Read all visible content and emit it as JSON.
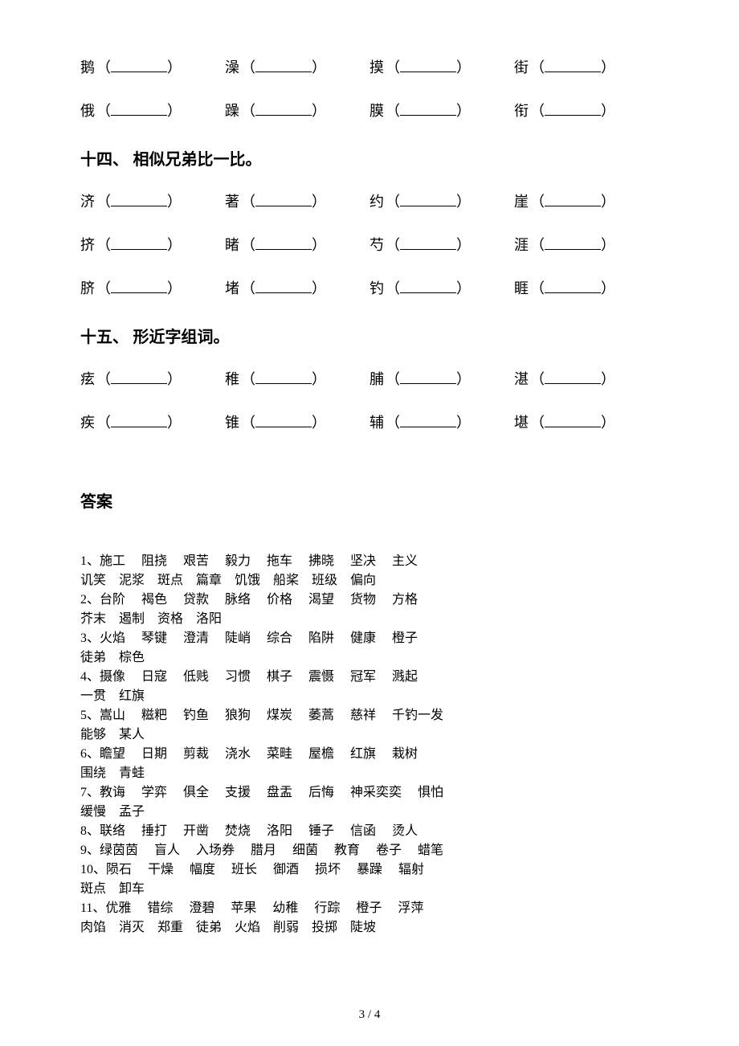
{
  "top_rows": [
    [
      "鹅",
      "澡",
      "摸",
      "街"
    ],
    [
      "俄",
      "躁",
      "膜",
      "衔"
    ]
  ],
  "sections": [
    {
      "title": "十四、 相似兄弟比一比。",
      "rows": [
        [
          "济",
          "著",
          "约",
          "崖"
        ],
        [
          "挤",
          "睹",
          "芍",
          "涯"
        ],
        [
          "脐",
          "堵",
          "钓",
          "睚"
        ]
      ]
    },
    {
      "title": "十五、 形近字组词。",
      "rows": [
        [
          "痃",
          "稚",
          "脯",
          "湛"
        ],
        [
          "疾",
          "锥",
          "辅",
          "堪"
        ]
      ]
    }
  ],
  "answer_title": "答案",
  "answers": [
    "1、施工     阻挠     艰苦     毅力     拖车     拂晓     坚决     主义",
    "讥笑    泥浆    斑点    篇章    饥饿    船桨    班级    偏向",
    "2、台阶     褐色     贷款     脉络     价格     渴望     货物     方格",
    "芥末    遏制    资格    洛阳",
    "3、火焰     琴键     澄清     陡峭     综合     陷阱     健康     橙子",
    "徒弟    棕色",
    "4、摄像     日寇     低贱     习惯     棋子     震慑     冠军     溅起",
    "一贯    红旗",
    "5、嵩山     糍粑     钓鱼     狼狗     煤炭     萎蒿     慈祥     千钓一发",
    "能够    某人",
    "6、瞻望     日期     剪裁     浇水     菜畦     屋檐     红旗     栽树",
    "围绕    青蛙",
    "7、教诲     学弈     俱全     支援     盘盂     后悔     神采奕奕     惧怕",
    "缓慢    孟子",
    "8、联络     捶打     开凿     焚烧     洛阳     锤子     信函     烫人",
    "9、绿茵茵     盲人     入场券     腊月     细菌     教育     卷子     蜡笔",
    "10、陨石     干燥     幅度     班长     御酒     损坏     暴躁     辐射",
    "斑点    卸车",
    "11、优雅     错综     澄碧     苹果     幼稚     行踪     橙子     浮萍",
    "肉馅    消灭    郑重    徒弟    火焰    削弱    投掷    陡坡"
  ],
  "footer": "3 / 4",
  "paren_open": "（",
  "paren_close": "）"
}
